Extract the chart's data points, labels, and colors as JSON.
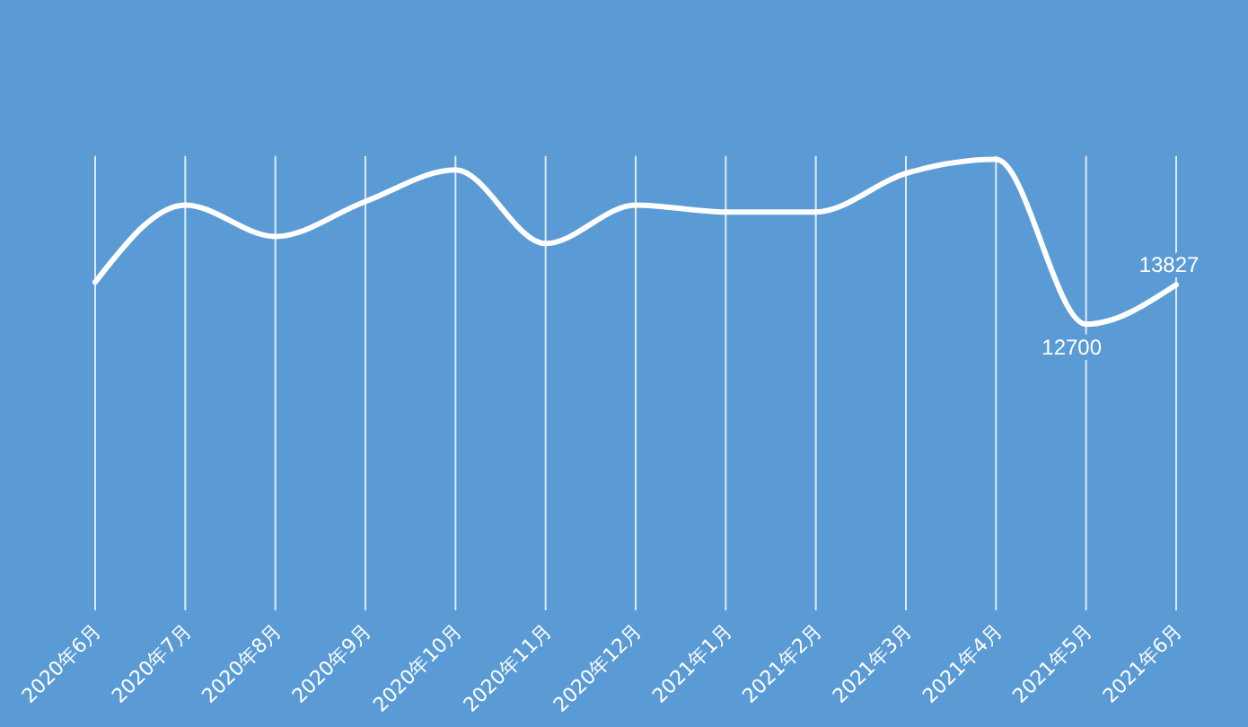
{
  "chart_data": {
    "type": "line",
    "categories": [
      "2020年6月",
      "2020年7月",
      "2020年8月",
      "2020年9月",
      "2020年10月",
      "2020年11月",
      "2020年12月",
      "2021年1月",
      "2021年2月",
      "2021年3月",
      "2021年4月",
      "2021年5月",
      "2021年6月"
    ],
    "ylim": [
      4500,
      17500
    ],
    "series": [
      {
        "color": "#ffffff",
        "values": [
          13900,
          16100,
          15200,
          16200,
          17100,
          15000,
          16100,
          15900,
          15900,
          17000,
          17400,
          12700,
          13827
        ],
        "value_labels": [
          null,
          null,
          null,
          null,
          null,
          null,
          null,
          null,
          null,
          null,
          null,
          "12700",
          "13827"
        ]
      }
    ],
    "grid": "x",
    "marker": "none",
    "line_style": "solid"
  }
}
